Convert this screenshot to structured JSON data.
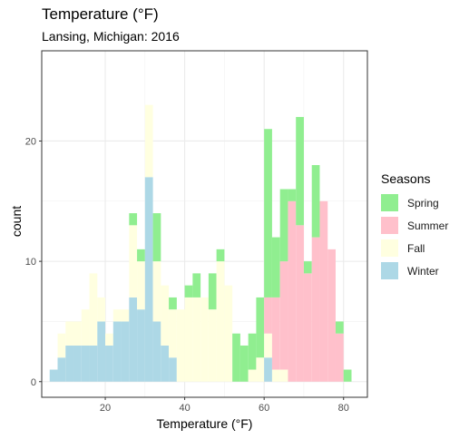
{
  "chart_data": {
    "type": "bar",
    "stacked": true,
    "title": "Temperature (°F)",
    "subtitle": "Lansing, Michigan: 2016",
    "xlabel": "Temperature (°F)",
    "ylabel": "count",
    "xlim": [
      4,
      86
    ],
    "ylim": [
      -1.3,
      27.5
    ],
    "x_ticks": [
      20,
      40,
      60,
      80
    ],
    "y_ticks": [
      0,
      10,
      20
    ],
    "grid": true,
    "bin_width": 2,
    "x": [
      7,
      9,
      11,
      13,
      15,
      17,
      19,
      21,
      23,
      25,
      27,
      29,
      31,
      33,
      35,
      37,
      39,
      41,
      43,
      45,
      47,
      49,
      51,
      53,
      55,
      57,
      59,
      61,
      63,
      65,
      67,
      69,
      71,
      73,
      75,
      77,
      79,
      81
    ],
    "legend_title": "Seasons",
    "legend_position": "right",
    "series": [
      {
        "name": "Spring",
        "color": "#90ee90",
        "values": [
          0,
          0,
          0,
          0,
          0,
          0,
          0,
          0,
          0,
          0,
          1,
          1,
          0,
          4,
          0,
          1,
          0,
          1,
          2,
          0,
          3,
          1,
          0,
          4,
          3,
          3,
          5,
          14,
          5,
          6,
          1,
          9,
          1,
          6,
          0,
          0,
          1,
          1
        ]
      },
      {
        "name": "Summer",
        "color": "#ffc0cb",
        "values": [
          0,
          0,
          0,
          0,
          0,
          0,
          0,
          0,
          0,
          0,
          0,
          0,
          0,
          0,
          0,
          0,
          0,
          0,
          0,
          0,
          0,
          0,
          0,
          0,
          0,
          0,
          0,
          3,
          6,
          9,
          15,
          13,
          9,
          12,
          15,
          11,
          4,
          0
        ]
      },
      {
        "name": "Fall",
        "color": "#ffffe0",
        "values": [
          0,
          2,
          2,
          2,
          3,
          6,
          2,
          1,
          1,
          1,
          6,
          4,
          6,
          5,
          5,
          4,
          6,
          7,
          7,
          7,
          6,
          10,
          8,
          0,
          0,
          1,
          2,
          2,
          1,
          1,
          0,
          0,
          0,
          0,
          0,
          0,
          0,
          0
        ]
      },
      {
        "name": "Winter",
        "color": "#add8e6",
        "values": [
          1,
          2,
          3,
          3,
          3,
          3,
          5,
          3,
          5,
          5,
          7,
          6,
          17,
          5,
          3,
          2,
          0,
          0,
          0,
          0,
          0,
          0,
          0,
          0,
          0,
          0,
          0,
          2,
          0,
          0,
          0,
          0,
          0,
          0,
          0,
          0,
          0,
          0
        ]
      }
    ]
  }
}
